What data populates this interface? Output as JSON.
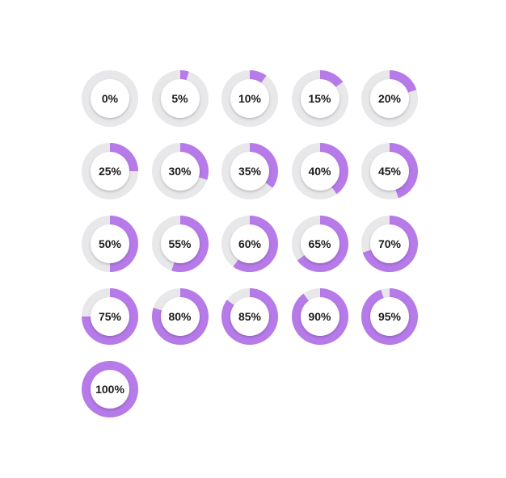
{
  "colors": {
    "track": "#e8e8ea",
    "fill": "#b67ae9",
    "inner": "#ffffff",
    "text": "#1c1c1c",
    "background": "#ffffff"
  },
  "gauges": [
    {
      "label": "0%",
      "value": 0
    },
    {
      "label": "5%",
      "value": 5
    },
    {
      "label": "10%",
      "value": 10
    },
    {
      "label": "15%",
      "value": 15
    },
    {
      "label": "20%",
      "value": 20
    },
    {
      "label": "25%",
      "value": 25
    },
    {
      "label": "30%",
      "value": 30
    },
    {
      "label": "35%",
      "value": 35
    },
    {
      "label": "40%",
      "value": 40
    },
    {
      "label": "45%",
      "value": 45
    },
    {
      "label": "50%",
      "value": 50
    },
    {
      "label": "55%",
      "value": 55
    },
    {
      "label": "60%",
      "value": 60
    },
    {
      "label": "65%",
      "value": 65
    },
    {
      "label": "70%",
      "value": 70
    },
    {
      "label": "75%",
      "value": 75
    },
    {
      "label": "80%",
      "value": 80
    },
    {
      "label": "85%",
      "value": 85
    },
    {
      "label": "90%",
      "value": 90
    },
    {
      "label": "95%",
      "value": 95
    },
    {
      "label": "100%",
      "value": 100
    }
  ]
}
